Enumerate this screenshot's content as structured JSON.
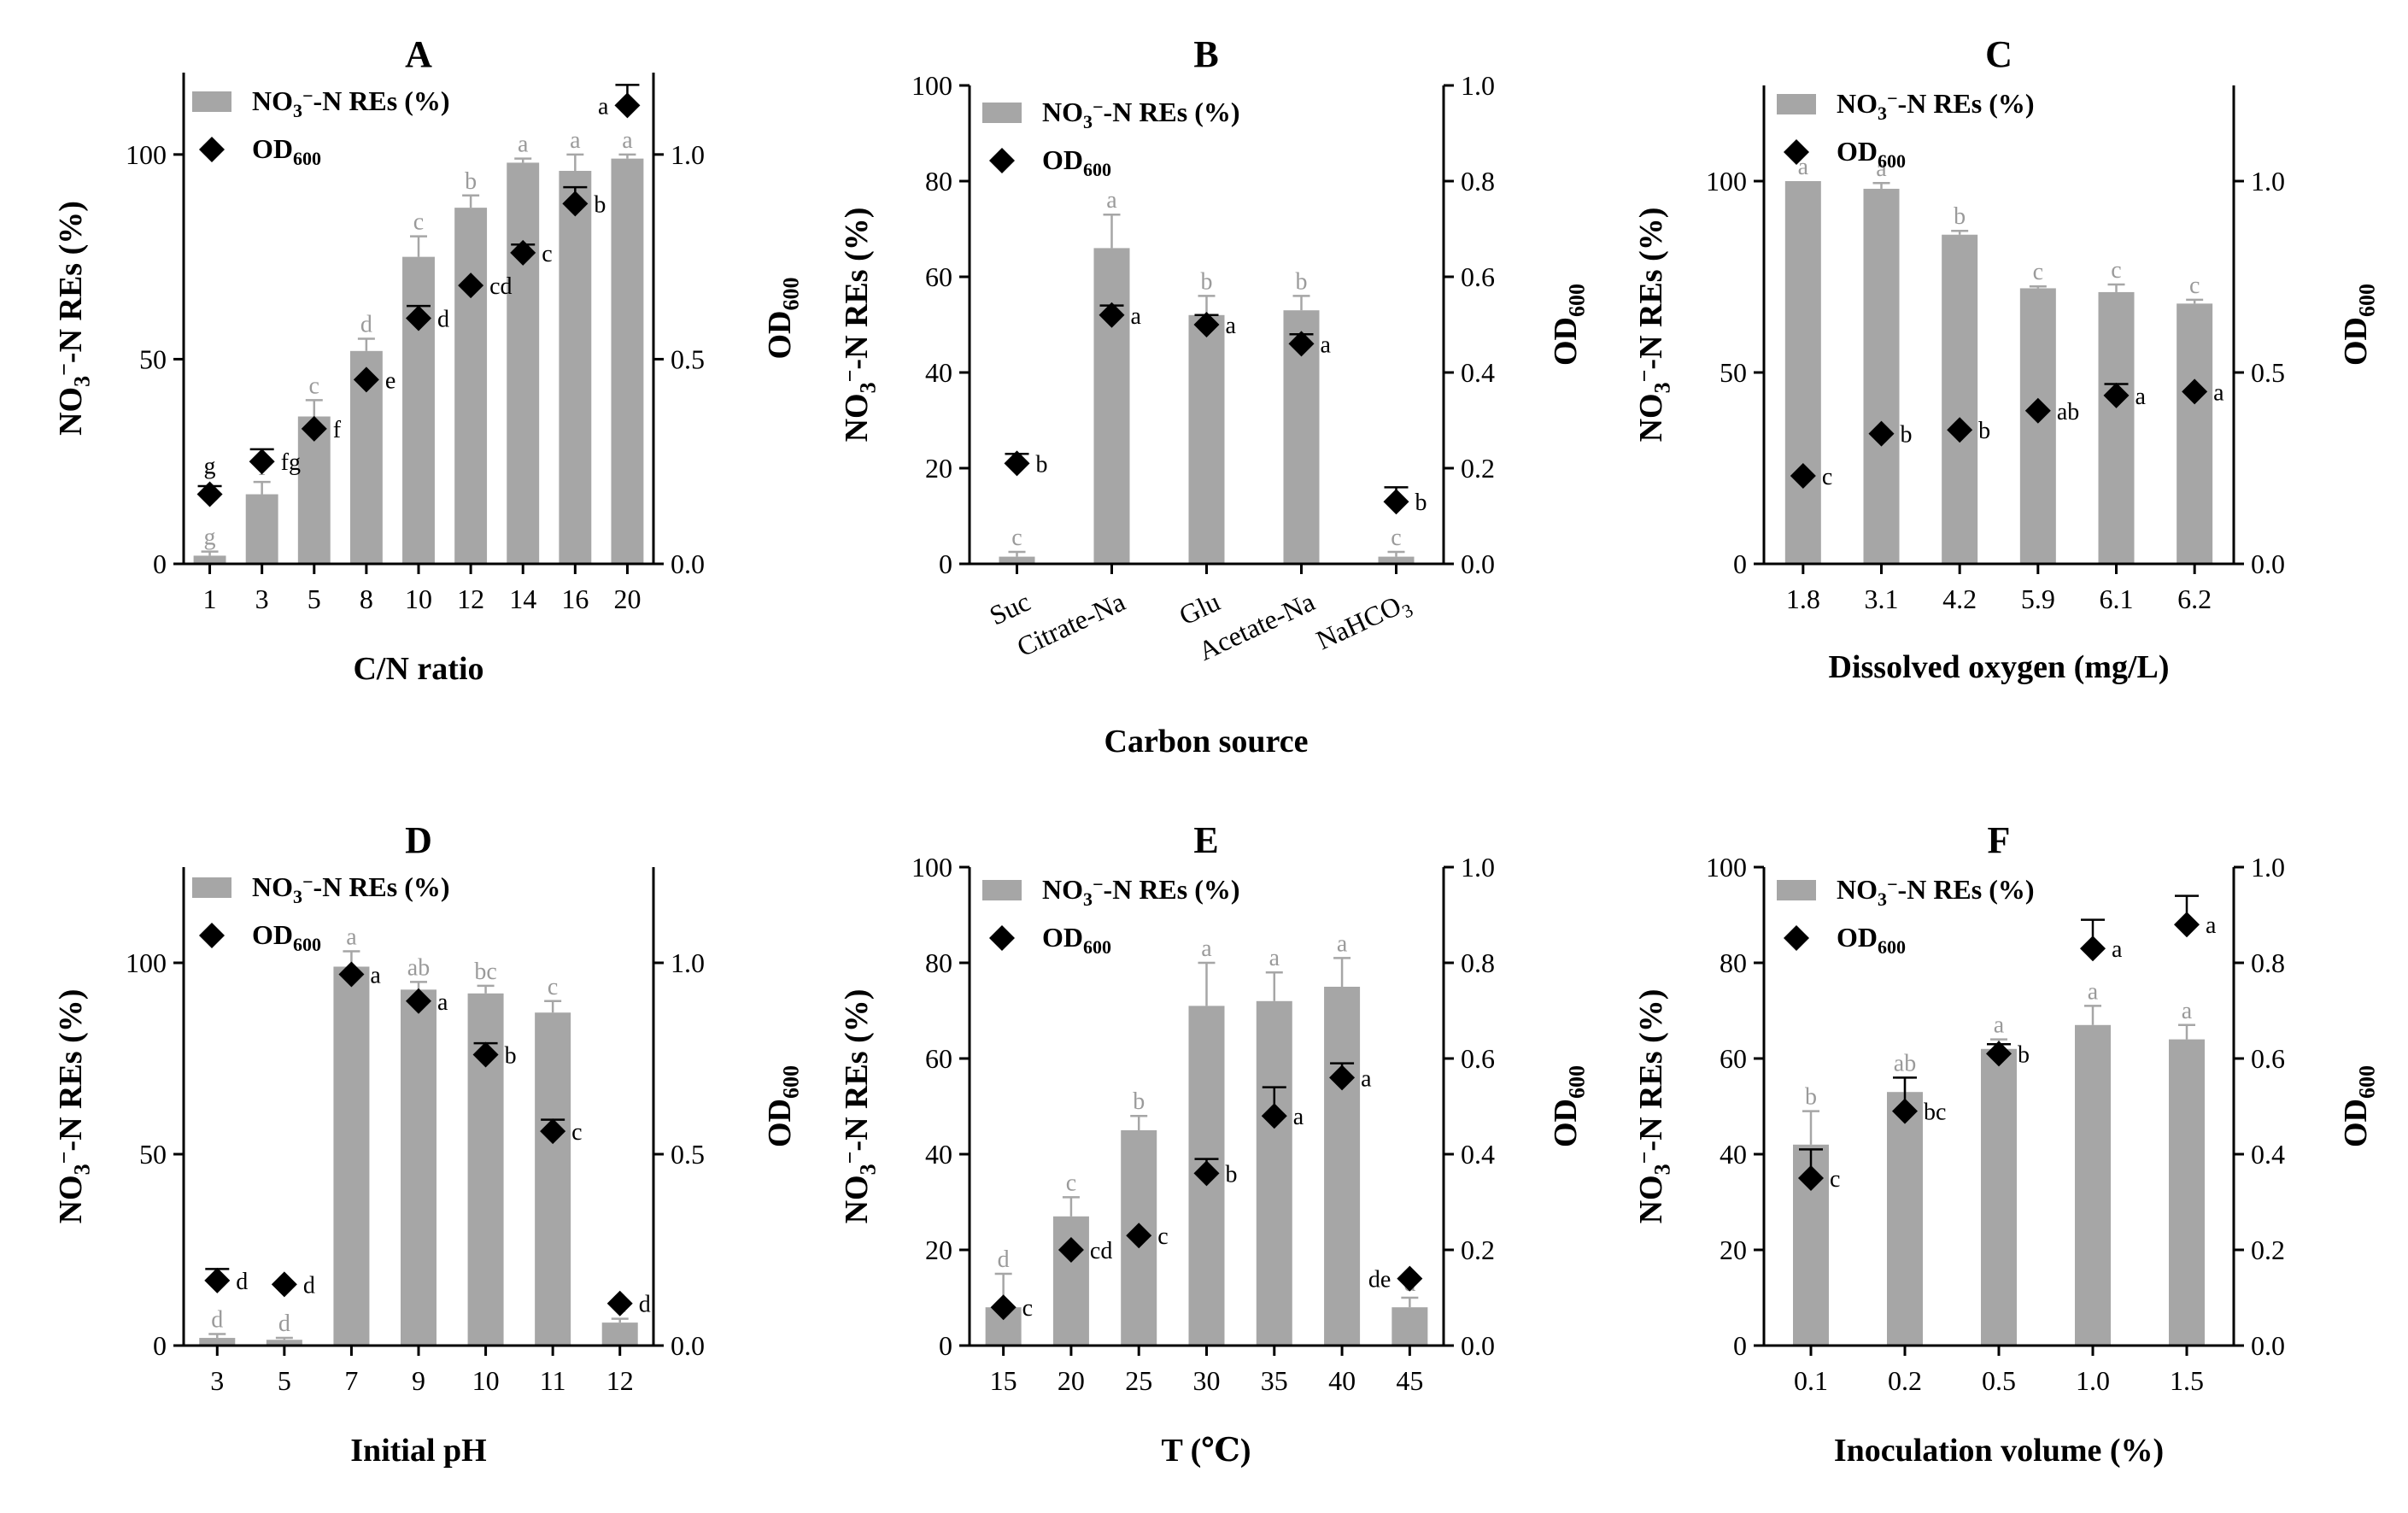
{
  "chart_data": [
    {
      "id": "A",
      "type": "bar",
      "title": "A",
      "xlabel": "C/N ratio",
      "ylabel": "NO3--N REs (%)",
      "y2label": "OD600",
      "categories": [
        "1",
        "3",
        "5",
        "8",
        "10",
        "12",
        "14",
        "16",
        "20"
      ],
      "ylim": [
        0,
        120
      ],
      "yticks": [
        "0",
        "50",
        "100"
      ],
      "y2lim": [
        0,
        1.2
      ],
      "y2ticks": [
        "0.0",
        "0.5",
        "1.0"
      ],
      "bars": [
        2,
        17,
        36,
        52,
        75,
        87,
        98,
        96,
        99
      ],
      "bars_err": [
        1,
        3,
        4,
        3,
        5,
        3,
        1,
        4,
        1
      ],
      "bar_letters": [
        "g",
        "f",
        "c",
        "d",
        "c",
        "b",
        "a",
        "a",
        "a"
      ],
      "od": [
        0.17,
        0.25,
        0.33,
        0.45,
        0.6,
        0.68,
        0.76,
        0.88,
        1.12
      ],
      "od_err": [
        0.02,
        0.03,
        0,
        0,
        0.03,
        0,
        0.02,
        0.04,
        0.05
      ],
      "od_letters": [
        "g",
        "fg",
        "f",
        "e",
        "d",
        "cd",
        "c",
        "b",
        "a"
      ],
      "od_letter_pos": [
        "above",
        "right",
        "right",
        "right",
        "right",
        "right",
        "right",
        "right",
        "left"
      ],
      "legend": {
        "bar": "NO3--N REs (%)",
        "od": "OD600",
        "position": "top-left",
        "bold": true
      }
    },
    {
      "id": "B",
      "type": "bar",
      "title": "B",
      "xlabel": "Carbon source",
      "ylabel": "NO3--N REs (%)",
      "y2label": "OD600",
      "categories": [
        "Suc",
        "Citrate-Na",
        "Glu",
        "Acetate-Na",
        "NaHCO3"
      ],
      "rotated_xticks": true,
      "ylim": [
        0,
        100
      ],
      "yticks": [
        "0",
        "20",
        "40",
        "60",
        "80",
        "100"
      ],
      "y2lim": [
        0,
        1
      ],
      "y2ticks": [
        "0.0",
        "0.2",
        "0.4",
        "0.6",
        "0.8",
        "1.0"
      ],
      "bars": [
        1.5,
        66,
        52,
        53,
        1.5
      ],
      "bars_err": [
        1,
        7,
        4,
        3,
        1
      ],
      "bar_letters": [
        "c",
        "a",
        "b",
        "b",
        "c"
      ],
      "od": [
        0.21,
        0.52,
        0.5,
        0.46,
        0.13
      ],
      "od_err": [
        0.02,
        0.02,
        0.02,
        0.02,
        0.03
      ],
      "od_letters": [
        "b",
        "a",
        "a",
        "a",
        "b"
      ],
      "od_letter_pos": [
        "right",
        "right",
        "right",
        "right",
        "right"
      ],
      "legend": {
        "bar": "NO3--N REs (%)",
        "od": "OD600",
        "position": "top-left",
        "bold": false
      }
    },
    {
      "id": "C",
      "type": "bar",
      "title": "C",
      "xlabel": "Dissolved oxygen (mg/L)",
      "ylabel": "NO3--N REs (%)",
      "y2label": "OD600",
      "categories": [
        "1.8",
        "3.1",
        "4.2",
        "5.9",
        "6.1",
        "6.2"
      ],
      "ylim": [
        0,
        125
      ],
      "yticks": [
        "0",
        "50",
        "100"
      ],
      "y2lim": [
        0,
        1.25
      ],
      "y2ticks": [
        "0.0",
        "0.5",
        "1.0"
      ],
      "bars": [
        100,
        98,
        86,
        72,
        71,
        68
      ],
      "bars_err": [
        0,
        1.5,
        1,
        0.5,
        2,
        1
      ],
      "bar_letters": [
        "a",
        "a",
        "b",
        "c",
        "c",
        "c"
      ],
      "od": [
        0.23,
        0.34,
        0.35,
        0.4,
        0.44,
        0.45
      ],
      "od_err": [
        0,
        0,
        0,
        0,
        0.03,
        0
      ],
      "od_letters": [
        "c",
        "b",
        "b",
        "ab",
        "a",
        "a"
      ],
      "od_letter_pos": [
        "right",
        "right",
        "right",
        "right",
        "right",
        "right"
      ],
      "legend": {
        "bar": "NO3--N REs (%)",
        "od": "OD600",
        "position": "top-left",
        "bold": false
      }
    },
    {
      "id": "D",
      "type": "bar",
      "title": "D",
      "xlabel": "Initial pH",
      "ylabel": "NO3--N REs (%)",
      "y2label": "OD600",
      "categories": [
        "3",
        "5",
        "7",
        "9",
        "10",
        "11",
        "12"
      ],
      "ylim": [
        0,
        125
      ],
      "yticks": [
        "0",
        "50",
        "100"
      ],
      "y2lim": [
        0,
        1.25
      ],
      "y2ticks": [
        "0.0",
        "0.5",
        "1.0"
      ],
      "bars": [
        2,
        1.5,
        99,
        93,
        92,
        87,
        6
      ],
      "bars_err": [
        1,
        0.5,
        4,
        2,
        2,
        3,
        1
      ],
      "bar_letters": [
        "d",
        "d",
        "a",
        "ab",
        "bc",
        "c",
        "d"
      ],
      "od": [
        0.17,
        0.16,
        0.97,
        0.9,
        0.76,
        0.56,
        0.11
      ],
      "od_err": [
        0.03,
        0,
        0,
        0,
        0.03,
        0.03,
        0
      ],
      "od_letters": [
        "d",
        "d",
        "a",
        "a",
        "b",
        "c",
        "d"
      ],
      "od_letter_pos": [
        "right",
        "right",
        "right",
        "right",
        "right",
        "right",
        "right"
      ],
      "legend": {
        "bar": "NO3--N REs (%)",
        "od": "OD600",
        "position": "top-left",
        "bold": true
      }
    },
    {
      "id": "E",
      "type": "bar",
      "title": "E",
      "xlabel": "T (℃)",
      "ylabel": "NO3--N REs (%)",
      "y2label": "OD600",
      "categories": [
        "15",
        "20",
        "25",
        "30",
        "35",
        "40",
        "45"
      ],
      "ylim": [
        0,
        100
      ],
      "yticks": [
        "0",
        "20",
        "40",
        "60",
        "80",
        "100"
      ],
      "y2lim": [
        0,
        1
      ],
      "y2ticks": [
        "0.0",
        "0.2",
        "0.4",
        "0.6",
        "0.8",
        "1.0"
      ],
      "bars": [
        8,
        27,
        45,
        71,
        72,
        75,
        8
      ],
      "bars_err": [
        7,
        4,
        3,
        9,
        6,
        6,
        2
      ],
      "bar_letters": [
        "d",
        "c",
        "b",
        "a",
        "a",
        "a",
        "d"
      ],
      "od": [
        0.08,
        0.2,
        0.23,
        0.36,
        0.48,
        0.56,
        0.14
      ],
      "od_err": [
        0,
        0,
        0,
        0.03,
        0.06,
        0.03,
        0
      ],
      "od_letters": [
        "c",
        "cd",
        "c",
        "b",
        "a",
        "a",
        "de"
      ],
      "od_letter_pos": [
        "right",
        "right",
        "right",
        "right",
        "right",
        "right",
        "left"
      ],
      "legend": {
        "bar": "NO3--N REs (%)",
        "od": "OD600",
        "position": "top-left",
        "bold": false
      }
    },
    {
      "id": "F",
      "type": "bar",
      "title": "F",
      "xlabel": "Inoculation volume (%)",
      "ylabel": "NO3--N REs (%)",
      "y2label": "OD600",
      "categories": [
        "0.1",
        "0.2",
        "0.5",
        "1.0",
        "1.5"
      ],
      "ylim": [
        0,
        100
      ],
      "yticks": [
        "0",
        "20",
        "40",
        "60",
        "80",
        "100"
      ],
      "y2lim": [
        0,
        1
      ],
      "y2ticks": [
        "0.0",
        "0.2",
        "0.4",
        "0.6",
        "0.8",
        "1.0"
      ],
      "bars": [
        42,
        53,
        62,
        67,
        64
      ],
      "bars_err": [
        7,
        3,
        2,
        4,
        3
      ],
      "bar_letters": [
        "b",
        "ab",
        "a",
        "a",
        "a"
      ],
      "od": [
        0.35,
        0.49,
        0.61,
        0.83,
        0.88
      ],
      "od_err": [
        0.06,
        0.07,
        0.02,
        0.06,
        0.06
      ],
      "od_letters": [
        "c",
        "bc",
        "b",
        "a",
        "a"
      ],
      "od_letter_pos": [
        "right",
        "right",
        "right",
        "right",
        "right"
      ],
      "legend": {
        "bar": "NO3--N REs (%)",
        "od": "OD600",
        "position": "top-left",
        "bold": true
      }
    }
  ],
  "colors": {
    "bar": "#a6a6a6",
    "bar_letter": "#9a9a9a",
    "marker": "#000000",
    "axis": "#000000"
  }
}
